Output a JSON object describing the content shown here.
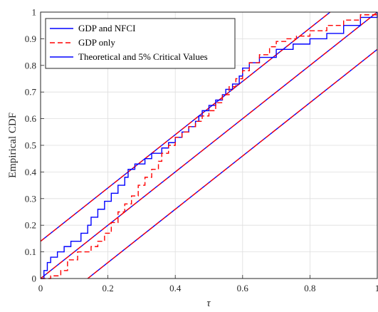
{
  "chart_data": {
    "type": "line",
    "xlabel": "τ",
    "ylabel": "Empirical CDF",
    "xlim": [
      0,
      1
    ],
    "ylim": [
      0,
      1
    ],
    "x_ticks": [
      "0",
      "0.2",
      "0.4",
      "0.6",
      "0.8",
      "1"
    ],
    "y_ticks": [
      "0",
      "0.1",
      "0.2",
      "0.3",
      "0.4",
      "0.5",
      "0.6",
      "0.7",
      "0.8",
      "0.9",
      "1"
    ],
    "grid": true,
    "legend_position": "top-left",
    "series": [
      {
        "name": "GDP and NFCI",
        "style": "step",
        "color": "#0000ff",
        "x": [
          0,
          0.01,
          0.02,
          0.03,
          0.05,
          0.07,
          0.09,
          0.12,
          0.14,
          0.15,
          0.17,
          0.19,
          0.21,
          0.23,
          0.25,
          0.26,
          0.28,
          0.31,
          0.33,
          0.36,
          0.38,
          0.4,
          0.42,
          0.44,
          0.46,
          0.47,
          0.48,
          0.5,
          0.52,
          0.54,
          0.55,
          0.57,
          0.59,
          0.6,
          0.62,
          0.65,
          0.7,
          0.75,
          0.8,
          0.85,
          0.9,
          0.95,
          1
        ],
        "y": [
          0,
          0.03,
          0.06,
          0.08,
          0.1,
          0.12,
          0.14,
          0.17,
          0.2,
          0.23,
          0.26,
          0.29,
          0.32,
          0.35,
          0.38,
          0.41,
          0.43,
          0.45,
          0.47,
          0.49,
          0.51,
          0.53,
          0.55,
          0.57,
          0.59,
          0.61,
          0.63,
          0.65,
          0.67,
          0.69,
          0.71,
          0.73,
          0.76,
          0.79,
          0.81,
          0.83,
          0.86,
          0.88,
          0.9,
          0.92,
          0.95,
          0.98,
          1
        ]
      },
      {
        "name": "GDP only",
        "style": "step",
        "dashed": true,
        "color": "#ff0000",
        "x": [
          0,
          0.03,
          0.06,
          0.08,
          0.11,
          0.15,
          0.17,
          0.19,
          0.21,
          0.23,
          0.25,
          0.27,
          0.29,
          0.31,
          0.33,
          0.35,
          0.36,
          0.38,
          0.4,
          0.42,
          0.44,
          0.46,
          0.48,
          0.5,
          0.52,
          0.54,
          0.56,
          0.58,
          0.6,
          0.62,
          0.65,
          0.68,
          0.7,
          0.73,
          0.76,
          0.8,
          0.85,
          0.9,
          0.95,
          1
        ],
        "y": [
          0,
          0.01,
          0.03,
          0.07,
          0.1,
          0.12,
          0.14,
          0.17,
          0.21,
          0.25,
          0.28,
          0.31,
          0.35,
          0.38,
          0.41,
          0.44,
          0.47,
          0.5,
          0.53,
          0.55,
          0.57,
          0.59,
          0.61,
          0.63,
          0.66,
          0.69,
          0.72,
          0.75,
          0.78,
          0.81,
          0.84,
          0.87,
          0.89,
          0.9,
          0.91,
          0.93,
          0.95,
          0.97,
          0.99,
          1
        ]
      },
      {
        "name": "Theoretical and 5% Critical Values",
        "style": "lines",
        "color": "#0000ff",
        "lines": [
          {
            "x": [
              0,
              1
            ],
            "y": [
              0,
              1
            ]
          },
          {
            "x": [
              0,
              0.86
            ],
            "y": [
              0.14,
              1
            ]
          },
          {
            "x": [
              0.14,
              1
            ],
            "y": [
              0,
              0.86
            ]
          }
        ]
      },
      {
        "style": "lines",
        "dashed": true,
        "color": "#ff0000",
        "lines": [
          {
            "x": [
              0,
              1
            ],
            "y": [
              0,
              1
            ]
          },
          {
            "x": [
              0,
              0.86
            ],
            "y": [
              0.14,
              1
            ]
          },
          {
            "x": [
              0.14,
              1
            ],
            "y": [
              0,
              0.86
            ]
          }
        ]
      }
    ]
  }
}
